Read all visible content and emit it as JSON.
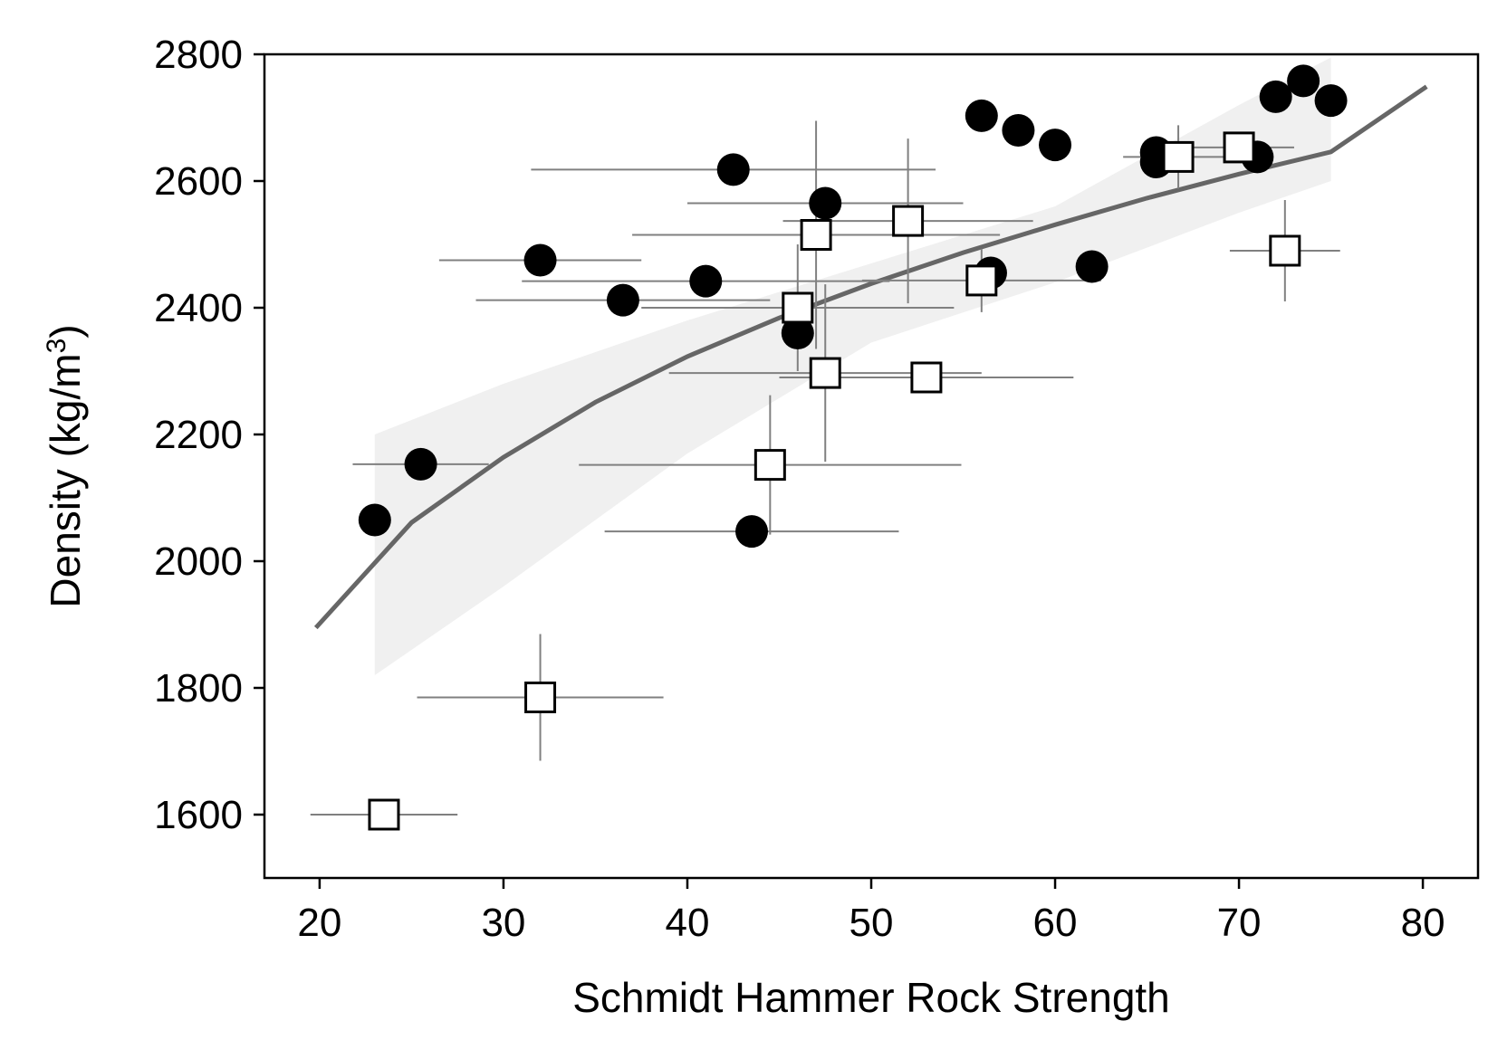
{
  "chart_data": {
    "type": "scatter",
    "title": "",
    "xlabel": "Schmidt Hammer Rock Strength",
    "ylabel": "Density (kg/m",
    "ylabel_sup": "3",
    "ylabel_close": ")",
    "xlim": [
      17,
      83
    ],
    "ylim": [
      1500,
      2800
    ],
    "xticks": [
      "20",
      "30",
      "40",
      "50",
      "60",
      "70",
      "80"
    ],
    "yticks": [
      "1600",
      "1800",
      "2000",
      "2200",
      "2400",
      "2600",
      "2800"
    ],
    "grid": false,
    "legend": "none",
    "colors": {
      "filled": "#000000",
      "open_fill": "#ffffff",
      "open_edge": "#000000",
      "error_bar": "#808080",
      "fit_line": "#666666",
      "band": "#f0f0f0"
    },
    "series": [
      {
        "marker": "filled-circle",
        "points": [
          {
            "x": 23.0,
            "y": 2065
          },
          {
            "x": 25.5,
            "y": 2153,
            "xerr": 3.7
          },
          {
            "x": 32.0,
            "y": 2475,
            "xerr": 5.5
          },
          {
            "x": 36.5,
            "y": 2412,
            "xerr": 8.0
          },
          {
            "x": 41.0,
            "y": 2442,
            "xerr": 10.0
          },
          {
            "x": 42.5,
            "y": 2618,
            "xerr": 11.0
          },
          {
            "x": 43.5,
            "y": 2047,
            "xerr": 8.0
          },
          {
            "x": 46.0,
            "y": 2360
          },
          {
            "x": 47.5,
            "y": 2565,
            "xerr": 7.5
          },
          {
            "x": 56.0,
            "y": 2703
          },
          {
            "x": 56.5,
            "y": 2455
          },
          {
            "x": 58.0,
            "y": 2680
          },
          {
            "x": 60.0,
            "y": 2657
          },
          {
            "x": 62.0,
            "y": 2465
          },
          {
            "x": 65.5,
            "y": 2645
          },
          {
            "x": 65.5,
            "y": 2630
          },
          {
            "x": 71.0,
            "y": 2638
          },
          {
            "x": 72.0,
            "y": 2733
          },
          {
            "x": 73.5,
            "y": 2758
          },
          {
            "x": 75.0,
            "y": 2727
          }
        ]
      },
      {
        "marker": "open-square",
        "points": [
          {
            "x": 23.5,
            "y": 1600,
            "xerr": 4.0
          },
          {
            "x": 32.0,
            "y": 1785,
            "xerr": 6.7,
            "yerr": 100
          },
          {
            "x": 44.5,
            "y": 2152,
            "xerr": 10.4,
            "yerr": 110
          },
          {
            "x": 46.0,
            "y": 2400,
            "xerr": 8.5,
            "yerr": 100
          },
          {
            "x": 47.0,
            "y": 2515,
            "xerr": 10.0,
            "yerr": 180
          },
          {
            "x": 47.5,
            "y": 2297,
            "xerr": 8.5,
            "yerr": 140
          },
          {
            "x": 52.0,
            "y": 2537,
            "xerr": 6.8,
            "yerr": 130
          },
          {
            "x": 53.0,
            "y": 2290,
            "xerr": 8.0
          },
          {
            "x": 56.0,
            "y": 2443,
            "xerr": 6.5,
            "yerr": 50
          },
          {
            "x": 66.7,
            "y": 2638,
            "xerr": 3.0,
            "yerr": 50
          },
          {
            "x": 70.0,
            "y": 2653,
            "xerr": 3.0
          },
          {
            "x": 72.5,
            "y": 2490,
            "xerr": 3.0,
            "yerr": 80
          }
        ]
      }
    ],
    "fit_curve": {
      "x": [
        19.8,
        25,
        30,
        35,
        40,
        45,
        50,
        55,
        60,
        65,
        70,
        75,
        80.2
      ],
      "y": [
        1895,
        2061,
        2164,
        2251,
        2323,
        2384,
        2438,
        2487,
        2531,
        2573,
        2611,
        2646,
        2749
      ]
    },
    "confidence_band": {
      "x": [
        23,
        30,
        40,
        50,
        60,
        70,
        75
      ],
      "upper": [
        2200,
        2280,
        2380,
        2470,
        2560,
        2720,
        2795
      ],
      "lower": [
        1820,
        1960,
        2170,
        2345,
        2440,
        2550,
        2600
      ]
    }
  }
}
